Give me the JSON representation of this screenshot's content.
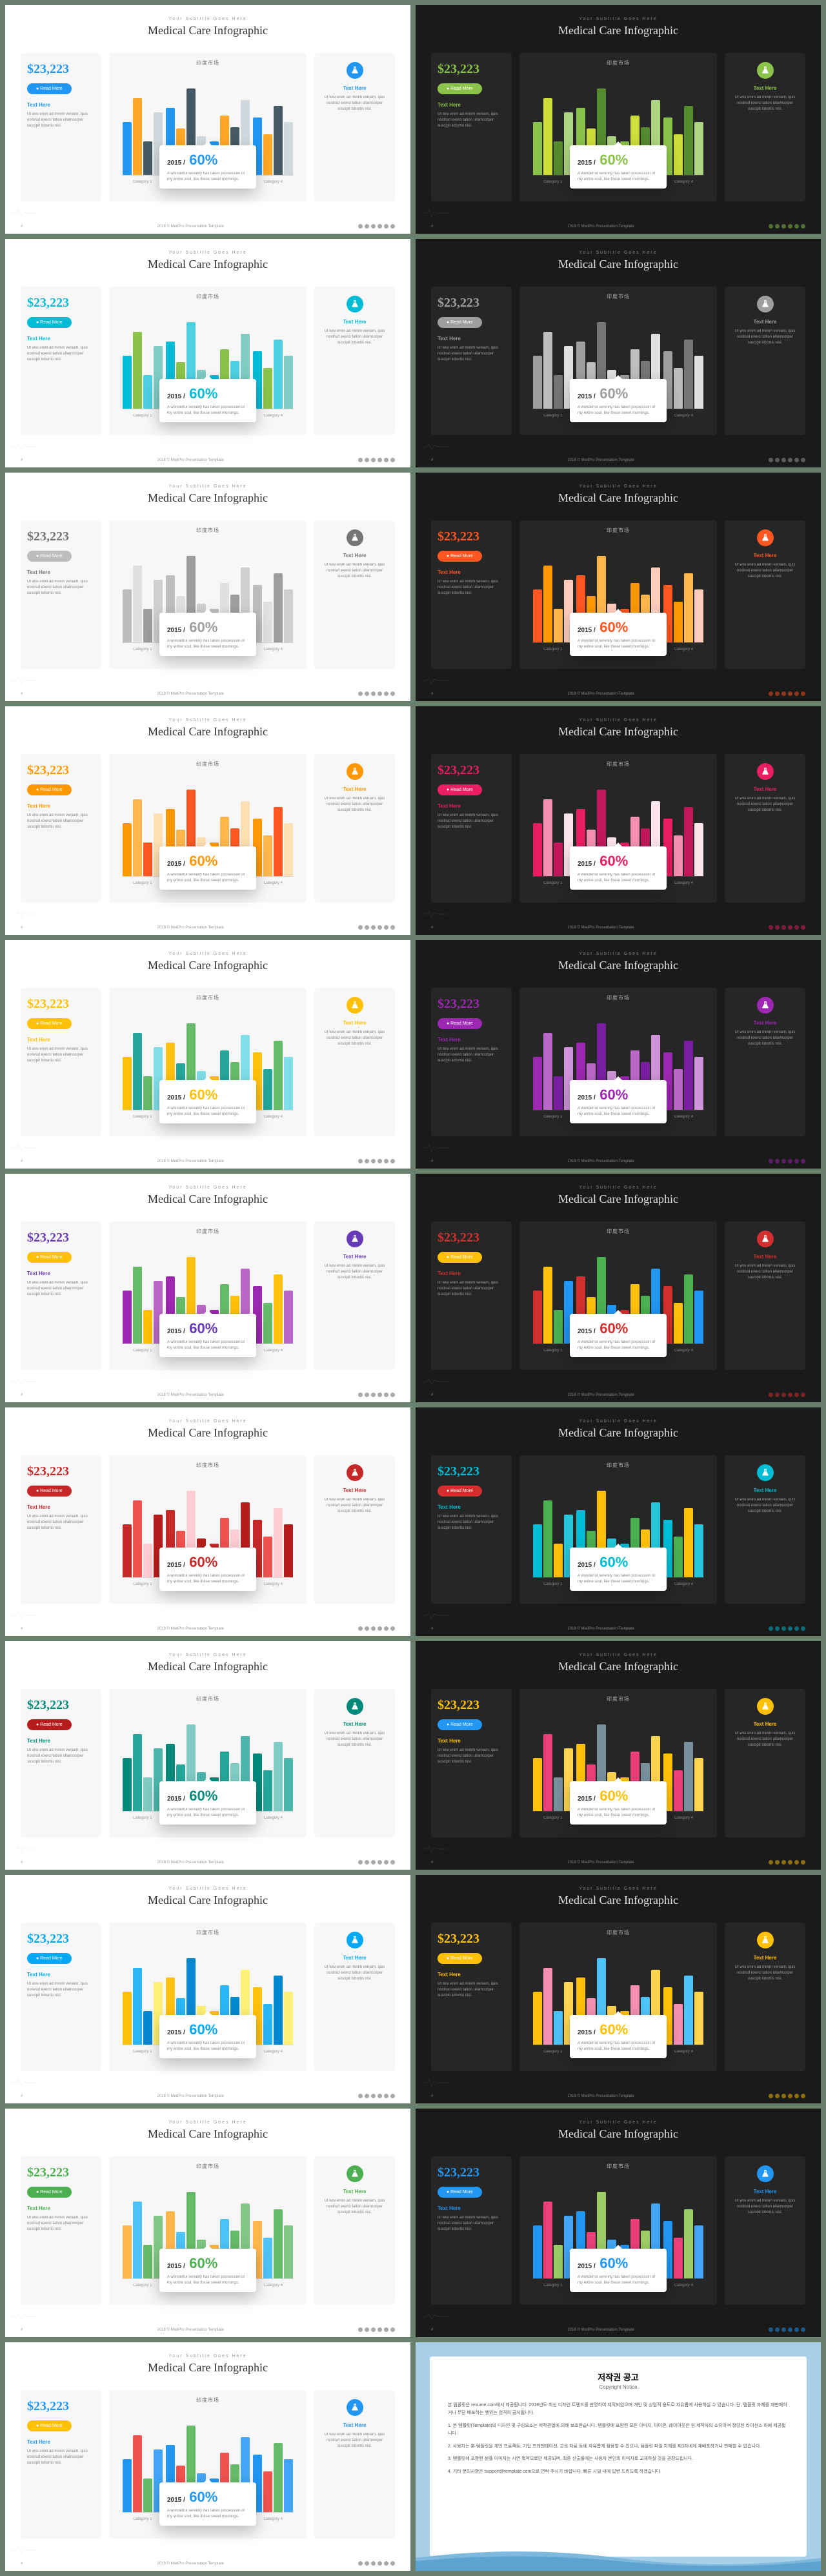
{
  "common": {
    "subtitle": "Your Subtitle Goes Here",
    "title": "Medical Care Infographic",
    "stat": "$23,223",
    "btn_label": "● Read More",
    "text_here": "Text Here",
    "blurb": "Ut wisi enim ad minim veniam, quis nostrud exerci tation ullamcorper suscipit lobortis nisl.",
    "chart_title": "印度市场",
    "popup_year": "2015 /",
    "popup_pct": "60%",
    "popup_text": "A wonderful serenity has taken possession of my entire soul, like these sweet mornings.",
    "footer_text": "2018 © MedPro Presentation Template",
    "categories": [
      "Category 1",
      "Category 2",
      "Category 3",
      "Category 4"
    ],
    "bar_groups": [
      [
        55,
        80,
        35,
        65
      ],
      [
        70,
        48,
        90,
        40
      ],
      [
        35,
        62,
        50,
        78
      ],
      [
        60,
        42,
        72,
        55
      ]
    ]
  },
  "variants": [
    {
      "accent": "#2196f3",
      "btn_bg": "#2196f3",
      "bars": [
        "#2196f3",
        "#ffa726",
        "#455a64",
        "#cfd8dc"
      ],
      "popup_accent": "#2196f3"
    },
    {
      "accent": "#8bc34a",
      "btn_bg": "#8bc34a",
      "bars": [
        "#8bc34a",
        "#cddc39",
        "#558b2f",
        "#aed581"
      ],
      "popup_accent": "#8bc34a"
    },
    {
      "accent": "#00bcd4",
      "btn_bg": "#00bcd4",
      "bars": [
        "#00bcd4",
        "#8bc34a",
        "#4dd0e1",
        "#80cbc4"
      ],
      "popup_accent": "#00bcd4"
    },
    {
      "accent": "#9e9e9e",
      "btn_bg": "#9e9e9e",
      "bars": [
        "#9e9e9e",
        "#bdbdbd",
        "#757575",
        "#e0e0e0"
      ],
      "popup_accent": "#9e9e9e"
    },
    {
      "accent": "#757575",
      "btn_bg": "#bdbdbd",
      "bars": [
        "#bdbdbd",
        "#e0e0e0",
        "#9e9e9e",
        "#cfcfcf"
      ],
      "popup_accent": "#9e9e9e"
    },
    {
      "accent": "#ff5722",
      "btn_bg": "#ff5722",
      "bars": [
        "#ff5722",
        "#ff9800",
        "#ffb74d",
        "#ffccbc"
      ],
      "popup_accent": "#ff5722"
    },
    {
      "accent": "#ff9800",
      "btn_bg": "#ff9800",
      "bars": [
        "#ff9800",
        "#ffb74d",
        "#ff5722",
        "#ffe0b2"
      ],
      "popup_accent": "#ff9800"
    },
    {
      "accent": "#e91e63",
      "btn_bg": "#e91e63",
      "bars": [
        "#e91e63",
        "#f48fb1",
        "#c2185b",
        "#fce4ec"
      ],
      "popup_accent": "#e91e63"
    },
    {
      "accent": "#ffc107",
      "btn_bg": "#ffc107",
      "bars": [
        "#ffc107",
        "#26a69a",
        "#66bb6a",
        "#80deea"
      ],
      "popup_accent": "#ffc107"
    },
    {
      "accent": "#9c27b0",
      "btn_bg": "#9c27b0",
      "bars": [
        "#9c27b0",
        "#ba68c8",
        "#7b1fa2",
        "#ce93d8"
      ],
      "popup_accent": "#9c27b0"
    },
    {
      "accent": "#673ab7",
      "btn_bg": "#ffc107",
      "bars": [
        "#9c27b0",
        "#66bb6a",
        "#ffc107",
        "#ba68c8"
      ],
      "popup_accent": "#673ab7"
    },
    {
      "accent": "#d32f2f",
      "btn_bg": "#ffc107",
      "bars": [
        "#d32f2f",
        "#ffc107",
        "#4caf50",
        "#2196f3"
      ],
      "popup_accent": "#d32f2f"
    },
    {
      "accent": "#c62828",
      "btn_bg": "#c62828",
      "bars": [
        "#c62828",
        "#ef5350",
        "#ffcdd2",
        "#b71c1c"
      ],
      "popup_accent": "#c62828"
    },
    {
      "accent": "#00bcd4",
      "btn_bg": "#d32f2f",
      "bars": [
        "#00bcd4",
        "#4caf50",
        "#ffc107",
        "#26c6da"
      ],
      "popup_accent": "#00bcd4"
    },
    {
      "accent": "#00897b",
      "btn_bg": "#b71c1c",
      "bars": [
        "#00897b",
        "#26a69a",
        "#80cbc4",
        "#4db6ac"
      ],
      "popup_accent": "#00897b"
    },
    {
      "accent": "#ffc107",
      "btn_bg": "#2196f3",
      "bars": [
        "#ffc107",
        "#ec407a",
        "#78909c",
        "#ffd54f"
      ],
      "popup_accent": "#ffc107"
    },
    {
      "accent": "#03a9f4",
      "btn_bg": "#03a9f4",
      "bars": [
        "#ffc107",
        "#29b6f6",
        "#0288d1",
        "#fff176"
      ],
      "popup_accent": "#03a9f4"
    },
    {
      "accent": "#ffc107",
      "btn_bg": "#ffc107",
      "bars": [
        "#ffc107",
        "#f48fb1",
        "#4fc3f7",
        "#ffd54f"
      ],
      "popup_accent": "#ffc107"
    },
    {
      "accent": "#4caf50",
      "btn_bg": "#4caf50",
      "bars": [
        "#ffb74d",
        "#4fc3f7",
        "#66bb6a",
        "#81c784"
      ],
      "popup_accent": "#4caf50"
    },
    {
      "accent": "#2196f3",
      "btn_bg": "#2196f3",
      "bars": [
        "#2196f3",
        "#ec407a",
        "#9ccc65",
        "#42a5f5"
      ],
      "popup_accent": "#2196f3"
    },
    {
      "accent": "#2196f3",
      "btn_bg": "#ffc107",
      "bars": [
        "#2196f3",
        "#ef5350",
        "#66bb6a",
        "#42a5f5"
      ],
      "popup_accent": "#2196f3"
    }
  ],
  "copyright": {
    "title": "저작권 공고",
    "sub": "Copyright Notice",
    "paragraphs": [
      "본 템플릿은 resume.com에서 제공됩니다. 2018년도 최신 디자인 트렌드를 반영하여 제작되었으며 개인 및 상업적 용도로 자유롭게 사용하실 수 있습니다. 단, 템플릿 자체를 재판매하거나 무단 배포하는 행위는 엄격히 금지됩니다.",
      "1. 본 템플릿(Template)의 디자인 및 구성요소는 저작권법에 의해 보호받습니다. 템플릿에 포함된 모든 이미지, 아이콘, 레이아웃은 원 제작자의 소유이며 정당한 라이선스 하에 제공됩니다.",
      "2. 사용자는 본 템플릿을 개인 프로젝트, 기업 프레젠테이션, 교육 자료 등에 자유롭게 활용할 수 있으나, 템플릿 파일 자체를 제3자에게 재배포하거나 판매할 수 없습니다.",
      "3. 템플릿에 포함된 샘플 이미지는 시연 목적으로만 제공되며, 최종 산출물에는 사용자 본인의 이미지로 교체하실 것을 권장드립니다.",
      "4. 기타 문의사항은 support@template.com으로 연락 주시기 바랍니다. 빠른 시일 내에 답변 드리도록 하겠습니다."
    ]
  }
}
